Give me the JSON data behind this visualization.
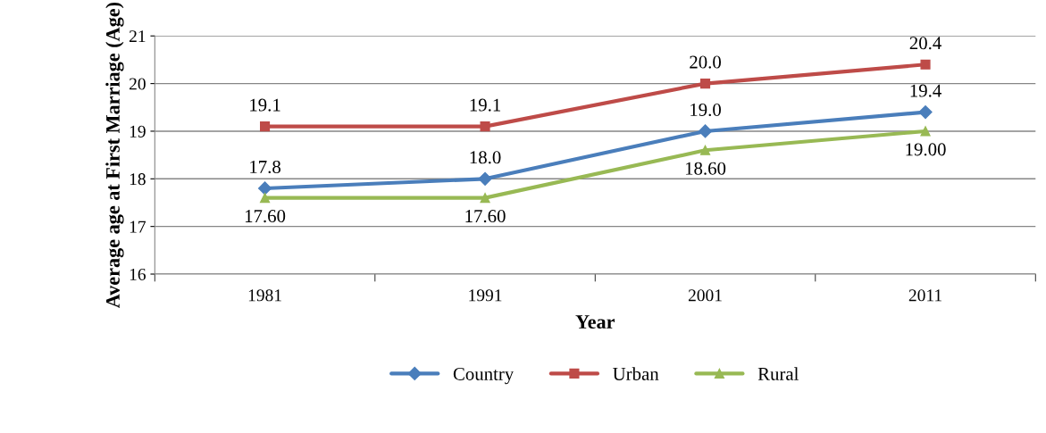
{
  "chart_data": {
    "type": "line",
    "xlabel": "Year",
    "ylabel": "Average age at First Marriage (Age)",
    "categories": [
      "1981",
      "1991",
      "2001",
      "2011"
    ],
    "series": [
      {
        "name": "Country",
        "color": "#4a7ebb",
        "marker": "diamond",
        "values": [
          17.8,
          18.0,
          19.0,
          19.4
        ],
        "value_labels": [
          "17.8",
          "18.0",
          "19.0",
          "19.4"
        ]
      },
      {
        "name": "Urban",
        "color": "#be4b48",
        "marker": "square",
        "values": [
          19.1,
          19.1,
          20.0,
          20.4
        ],
        "value_labels": [
          "19.1",
          "19.1",
          "20.0",
          "20.4"
        ]
      },
      {
        "name": "Rural",
        "color": "#98b954",
        "marker": "triangle",
        "values": [
          17.6,
          17.6,
          18.6,
          19.0
        ],
        "value_labels": [
          "17.60",
          "17.60",
          "18.60",
          "19.00"
        ]
      }
    ],
    "ylim": [
      16,
      21
    ],
    "yticks": [
      16,
      17,
      18,
      19,
      20,
      21
    ],
    "grid": "y",
    "legend": "bottom",
    "line_style": "solid"
  }
}
